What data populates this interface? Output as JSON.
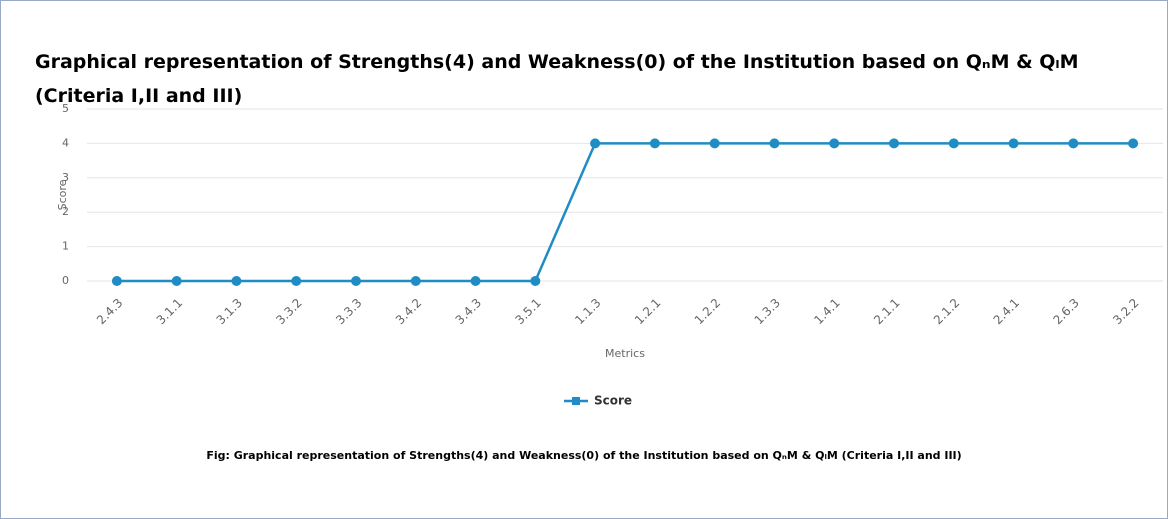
{
  "chart_data": {
    "type": "line",
    "title": "Graphical representation of Strengths(4) and Weakness(0) of the Institution based on QₙM & QₗM (Criteria I,II and III)",
    "x_label": "Metrics",
    "y_label": "Score",
    "categories": [
      "2.4.3",
      "3.1.1",
      "3.1.3",
      "3.3.2",
      "3.3.3",
      "3.4.2",
      "3.4.3",
      "3.5.1",
      "1.1.3",
      "1.2.1",
      "1.2.2",
      "1.3.3",
      "1.4.1",
      "2.1.1",
      "2.1.2",
      "2.4.1",
      "2.6.3",
      "3.2.2"
    ],
    "series": [
      {
        "name": "Score",
        "color": "#1f8dc4",
        "values": [
          0,
          0,
          0,
          0,
          0,
          0,
          0,
          0,
          4,
          4,
          4,
          4,
          4,
          4,
          4,
          4,
          4,
          4
        ]
      }
    ],
    "ylim": [
      0,
      5
    ],
    "yticks": [
      0,
      1,
      2,
      3,
      4,
      5
    ],
    "grid": true,
    "legend": "bottom",
    "caption": "Fig: Graphical representation of Strengths(4) and Weakness(0) of the Institution based on QₙM & QₗM (Criteria I,II and III)"
  }
}
